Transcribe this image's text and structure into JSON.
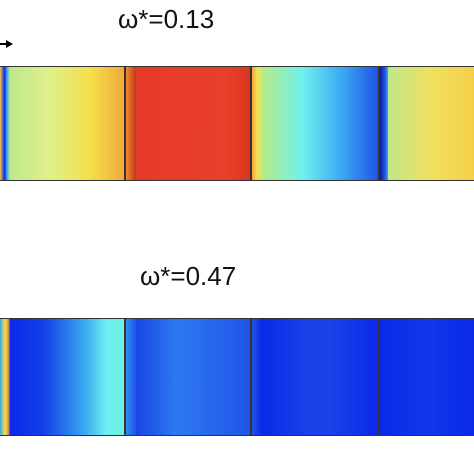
{
  "panels": [
    {
      "label": "ω*=0.13"
    },
    {
      "label": "ω*=0.47"
    }
  ],
  "colors": {
    "dark_red": "#c8301e",
    "red": "#e8402a",
    "orange": "#f39a2e",
    "yellow": "#f4e04a",
    "light_green": "#c4ea7a",
    "cyan": "#6ff0f0",
    "light_blue": "#3aa6f2",
    "blue": "#1f55e6",
    "deep_blue": "#0a2ae8",
    "navy": "#0a1c9c",
    "outline": "#333333"
  },
  "icons": [
    "arrow-right-icon"
  ]
}
